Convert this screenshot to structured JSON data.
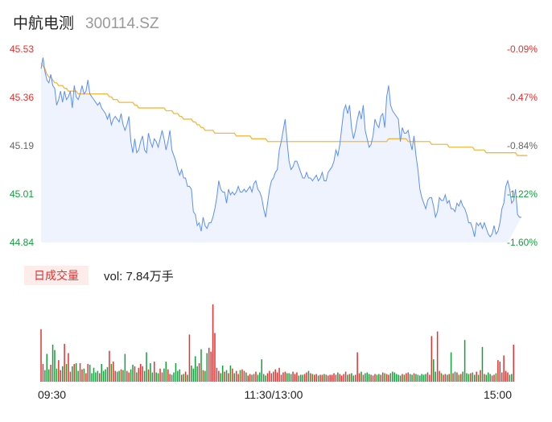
{
  "header": {
    "name": "中航电测",
    "code": "300114.SZ"
  },
  "volume_panel": {
    "tag": "日成交量",
    "vol_label": "vol: 7.84万手"
  },
  "colors": {
    "up": "#e5312f",
    "down": "#12a03a",
    "price_line": "#5b8ff9",
    "avg_line": "#f5b73b",
    "area": "#eef3fe"
  },
  "chart_data": [
    {
      "type": "line",
      "title": "",
      "x_ticks": [
        "09:30",
        "11:30/13:00",
        "15:00"
      ],
      "y_left_ticks": [
        "45.53",
        "45.36",
        "45.19",
        "45.01",
        "44.84"
      ],
      "y_right_ticks": [
        "-0.09%",
        "-0.47%",
        "-0.84%",
        "-1.22%",
        "-1.60%"
      ],
      "ylim": [
        44.84,
        45.53
      ],
      "points_count": 240,
      "series": [
        {
          "key": "price",
          "values": [
            45.46,
            45.5,
            45.45,
            45.42,
            45.41,
            45.44,
            45.4,
            45.39,
            45.33,
            45.35,
            45.38,
            45.34,
            45.38,
            45.35,
            45.36,
            45.38,
            45.32,
            45.4,
            45.36,
            45.35,
            45.37,
            45.4,
            45.37,
            45.38,
            45.42,
            45.37,
            45.36,
            45.35,
            45.34,
            45.33,
            45.34,
            45.32,
            45.31,
            45.3,
            45.28,
            45.3,
            45.26,
            45.28,
            45.29,
            45.28,
            45.27,
            45.3,
            45.26,
            45.24,
            45.26,
            45.29,
            45.2,
            45.16,
            45.21,
            45.16,
            45.17,
            45.2,
            45.22,
            45.17,
            45.16,
            45.23,
            45.2,
            45.18,
            45.21,
            45.2,
            45.18,
            45.21,
            45.24,
            45.21,
            45.17,
            45.2,
            45.24,
            45.17,
            45.15,
            45.13,
            45.1,
            45.08,
            45.1,
            45.07,
            45.07,
            45.04,
            45.04,
            45.03,
            44.95,
            44.94,
            44.9,
            44.91,
            44.88,
            44.93,
            44.9,
            44.89,
            44.91,
            44.91,
            44.93,
            44.96,
            45.0,
            45.06,
            45.03,
            45.02,
            45.02,
            44.98,
            45.03,
            45.01,
            45.02,
            45.01,
            45.02,
            45.04,
            45.02,
            45.02,
            45.03,
            45.02,
            45.03,
            45.04,
            45.02,
            45.05,
            45.06,
            45.03,
            45.02,
            45.0,
            44.96,
            44.93,
            44.98,
            45.03,
            45.06,
            45.07,
            45.09,
            45.1,
            45.17,
            45.2,
            45.24,
            45.28,
            45.2,
            45.13,
            45.1,
            45.11,
            45.13,
            45.13,
            45.11,
            45.09,
            45.07,
            45.07,
            45.09,
            45.07,
            45.07,
            45.06,
            45.07,
            45.08,
            45.06,
            45.07,
            45.09,
            45.06,
            45.06,
            45.09,
            45.1,
            45.11,
            45.13,
            45.17,
            45.15,
            45.19,
            45.25,
            45.31,
            45.33,
            45.3,
            45.33,
            45.25,
            45.21,
            45.24,
            45.28,
            45.31,
            45.28,
            45.33,
            45.24,
            45.21,
            45.18,
            45.19,
            45.22,
            45.28,
            45.26,
            45.25,
            45.29,
            45.3,
            45.25,
            45.36,
            45.4,
            45.33,
            45.31,
            45.3,
            45.29,
            45.28,
            45.2,
            45.25,
            45.23,
            45.23,
            45.24,
            45.2,
            45.17,
            45.22,
            45.15,
            45.1,
            45.03,
            45.0,
            44.98,
            44.96,
            44.99,
            45.0,
            45.0,
            44.97,
            44.93,
            44.95,
            45.0,
            44.99,
            44.99,
            45.01,
            44.98,
            44.99,
            44.96,
            44.96,
            44.95,
            44.98,
            44.97,
            44.99,
            44.97,
            44.96,
            44.94,
            44.91,
            44.91,
            44.89,
            44.86,
            44.91,
            44.9,
            44.91,
            44.89,
            44.91,
            44.89,
            44.87,
            44.86,
            44.87,
            44.9,
            44.87,
            44.88,
            44.91,
            44.96,
            44.98,
            45.04,
            45.06,
            45.03,
            44.98,
            44.99,
            45.03,
            44.94,
            44.93,
            44.93
          ]
        },
        {
          "key": "average",
          "values": [
            45.48,
            45.47,
            45.46,
            45.44,
            45.43,
            45.43,
            45.42,
            45.41,
            45.41,
            45.4,
            45.4,
            45.4,
            45.39,
            45.39,
            45.38,
            45.38,
            45.38,
            45.38,
            45.38,
            45.37,
            45.37,
            45.37,
            45.37,
            45.37,
            45.37,
            45.37,
            45.37,
            45.37,
            45.37,
            45.37,
            45.37,
            45.37,
            45.37,
            45.37,
            45.37,
            45.36,
            45.36,
            45.35,
            45.35,
            45.35,
            45.34,
            45.34,
            45.34,
            45.34,
            45.34,
            45.34,
            45.34,
            45.34,
            45.33,
            45.33,
            45.32,
            45.32,
            45.32,
            45.32,
            45.32,
            45.32,
            45.32,
            45.32,
            45.32,
            45.32,
            45.32,
            45.32,
            45.32,
            45.32,
            45.31,
            45.31,
            45.31,
            45.31,
            45.3,
            45.3,
            45.3,
            45.29,
            45.29,
            45.28,
            45.28,
            45.28,
            45.28,
            45.28,
            45.27,
            45.27,
            45.26,
            45.26,
            45.25,
            45.25,
            45.24,
            45.24,
            45.24,
            45.24,
            45.24,
            45.23,
            45.23,
            45.23,
            45.23,
            45.23,
            45.23,
            45.23,
            45.23,
            45.23,
            45.23,
            45.23,
            45.22,
            45.22,
            45.22,
            45.22,
            45.22,
            45.22,
            45.22,
            45.22,
            45.21,
            45.21,
            45.21,
            45.21,
            45.21,
            45.21,
            45.21,
            45.21,
            45.2,
            45.2,
            45.2,
            45.2,
            45.2,
            45.2,
            45.2,
            45.2,
            45.2,
            45.2,
            45.2,
            45.2,
            45.2,
            45.2,
            45.2,
            45.2,
            45.2,
            45.2,
            45.2,
            45.2,
            45.2,
            45.2,
            45.2,
            45.2,
            45.2,
            45.2,
            45.2,
            45.2,
            45.2,
            45.2,
            45.2,
            45.2,
            45.2,
            45.2,
            45.2,
            45.2,
            45.2,
            45.2,
            45.2,
            45.2,
            45.2,
            45.2,
            45.2,
            45.2,
            45.2,
            45.2,
            45.2,
            45.2,
            45.2,
            45.2,
            45.2,
            45.2,
            45.2,
            45.2,
            45.2,
            45.2,
            45.2,
            45.2,
            45.2,
            45.2,
            45.2,
            45.2,
            45.21,
            45.21,
            45.21,
            45.21,
            45.21,
            45.21,
            45.21,
            45.21,
            45.21,
            45.21,
            45.2,
            45.2,
            45.2,
            45.2,
            45.2,
            45.2,
            45.2,
            45.2,
            45.2,
            45.2,
            45.2,
            45.2,
            45.19,
            45.19,
            45.19,
            45.19,
            45.19,
            45.19,
            45.19,
            45.19,
            45.19,
            45.18,
            45.18,
            45.18,
            45.18,
            45.18,
            45.18,
            45.18,
            45.18,
            45.18,
            45.18,
            45.18,
            45.18,
            45.18,
            45.17,
            45.17,
            45.17,
            45.17,
            45.17,
            45.17,
            45.16,
            45.16,
            45.16,
            45.16,
            45.16,
            45.16,
            45.16,
            45.16,
            45.16,
            45.16,
            45.16,
            45.16,
            45.16,
            45.16,
            45.16,
            45.16,
            45.15,
            45.15,
            45.15,
            45.15,
            45.15,
            45.15
          ]
        }
      ]
    },
    {
      "type": "bar",
      "title": "",
      "ylim": [
        0,
        1
      ],
      "series": [
        {
          "key": "volume",
          "values": [
            0.68,
            0.23,
            0.15,
            0.36,
            0.16,
            0.22,
            0.48,
            0.41,
            0.17,
            0.28,
            0.15,
            0.2,
            0.49,
            0.23,
            0.37,
            0.13,
            0.2,
            0.23,
            0.24,
            0.14,
            0.24,
            0.16,
            0.17,
            0.11,
            0.23,
            0.22,
            0.11,
            0.18,
            0.12,
            0.14,
            0.11,
            0.23,
            0.14,
            0.16,
            0.19,
            0.4,
            0.23,
            0.26,
            0.14,
            0.13,
            0.14,
            0.16,
            0.15,
            0.36,
            0.14,
            0.12,
            0.16,
            0.22,
            0.2,
            0.12,
            0.18,
            0.23,
            0.2,
            0.14,
            0.38,
            0.16,
            0.24,
            0.12,
            0.26,
            0.12,
            0.11,
            0.17,
            0.12,
            0.17,
            0.26,
            0.16,
            0.1,
            0.09,
            0.12,
            0.24,
            0.14,
            0.16,
            0.09,
            0.1,
            0.13,
            0.09,
            0.61,
            0.21,
            0.17,
            0.33,
            0.2,
            0.24,
            0.42,
            0.15,
            0.14,
            0.37,
            0.44,
            0.39,
            1.0,
            0.63,
            0.18,
            0.14,
            0.11,
            0.21,
            0.13,
            0.15,
            0.11,
            0.21,
            0.17,
            0.11,
            0.14,
            0.1,
            0.15,
            0.16,
            0.14,
            0.12,
            0.08,
            0.1,
            0.09,
            0.1,
            0.13,
            0.09,
            0.12,
            0.29,
            0.1,
            0.08,
            0.11,
            0.14,
            0.11,
            0.13,
            0.16,
            0.12,
            0.18,
            0.09,
            0.12,
            0.13,
            0.11,
            0.11,
            0.1,
            0.13,
            0.1,
            0.12,
            0.08,
            0.09,
            0.09,
            0.1,
            0.12,
            0.14,
            0.11,
            0.1,
            0.09,
            0.1,
            0.08,
            0.09,
            0.09,
            0.1,
            0.09,
            0.08,
            0.09,
            0.09,
            0.11,
            0.09,
            0.12,
            0.1,
            0.08,
            0.1,
            0.13,
            0.09,
            0.1,
            0.11,
            0.08,
            0.09,
            0.38,
            0.11,
            0.13,
            0.09,
            0.11,
            0.12,
            0.1,
            0.09,
            0.08,
            0.1,
            0.09,
            0.1,
            0.09,
            0.12,
            0.11,
            0.1,
            0.09,
            0.11,
            0.13,
            0.12,
            0.1,
            0.09,
            0.08,
            0.1,
            0.09,
            0.11,
            0.12,
            0.1,
            0.09,
            0.11,
            0.1,
            0.09,
            0.08,
            0.1,
            0.09,
            0.1,
            0.12,
            0.09,
            0.59,
            0.29,
            0.13,
            0.65,
            0.14,
            0.11,
            0.09,
            0.1,
            0.09,
            0.1,
            0.38,
            0.11,
            0.13,
            0.12,
            0.09,
            0.1,
            0.13,
            0.54,
            0.11,
            0.1,
            0.11,
            0.12,
            0.09,
            0.13,
            0.09,
            0.15,
            0.45,
            0.1,
            0.09,
            0.12,
            0.1,
            0.08,
            0.09,
            0.11,
            0.28,
            0.26,
            0.12,
            0.34,
            0.14,
            0.12,
            0.09,
            0.1,
            0.48
          ]
        }
      ]
    }
  ]
}
